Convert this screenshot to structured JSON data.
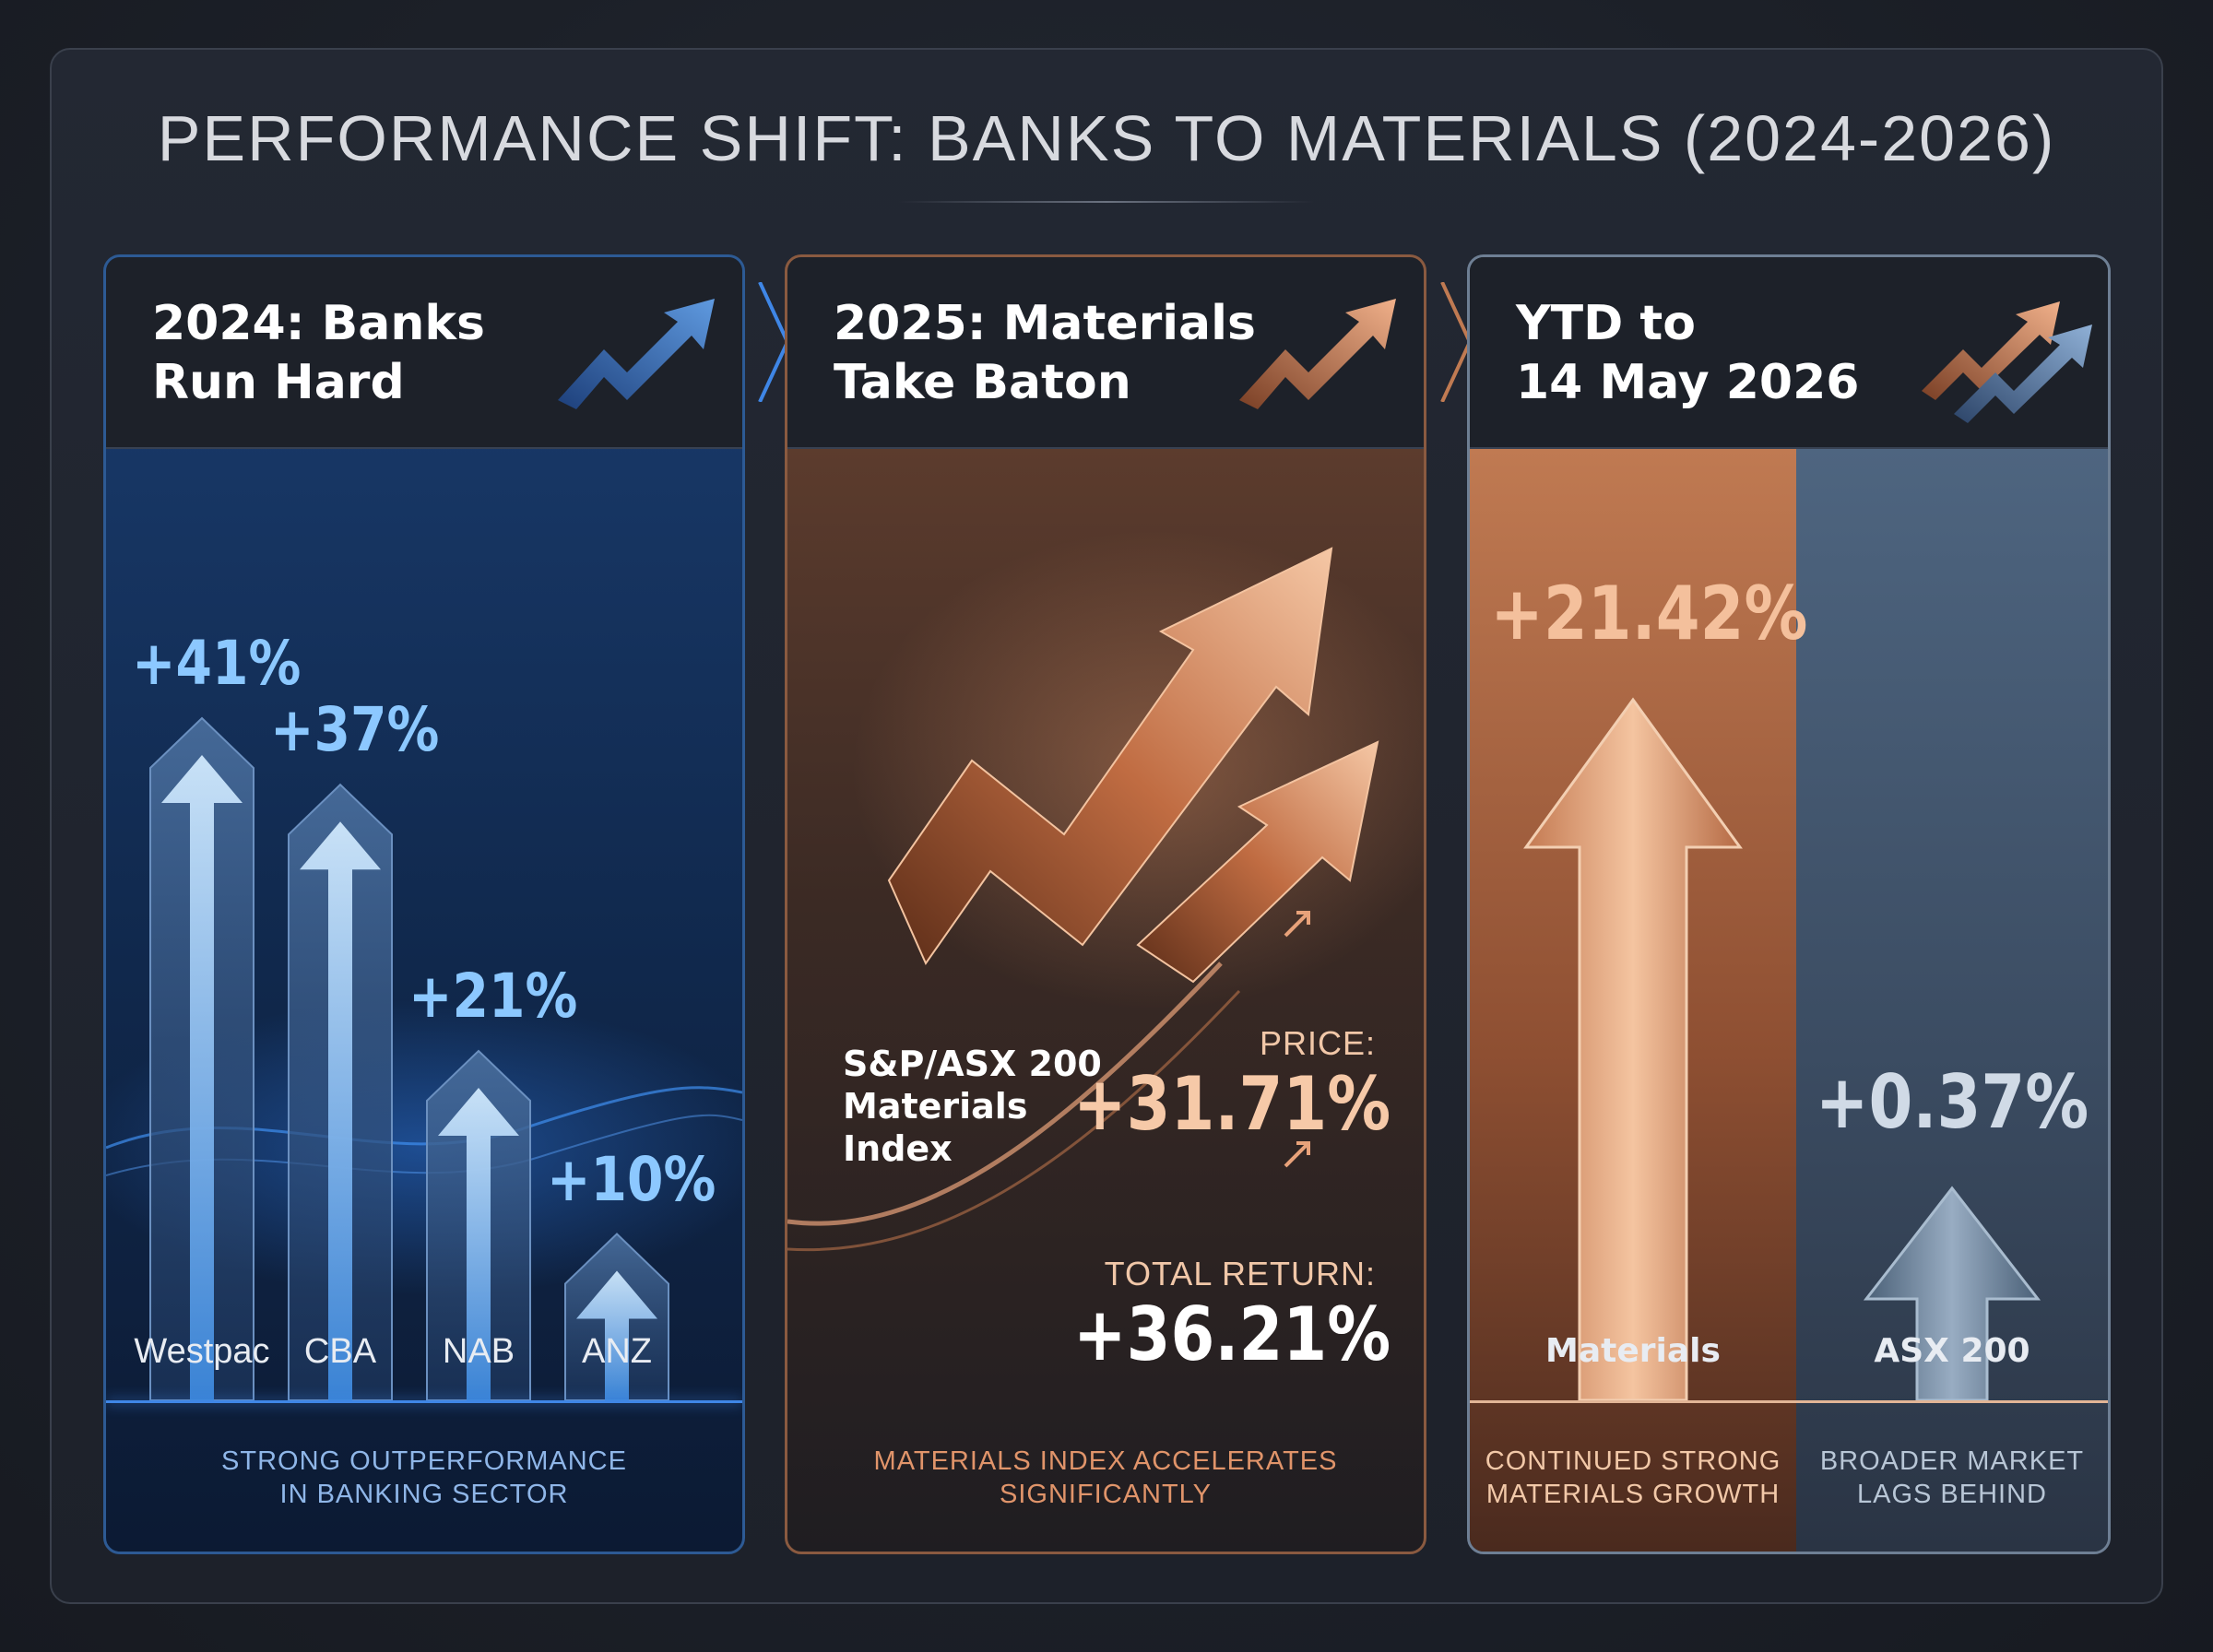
{
  "title": "PERFORMANCE SHIFT: BANKS TO MATERIALS (2024-2026)",
  "colors": {
    "blue_accent": "#6fb8ff",
    "copper_accent": "#e8a27a",
    "slate_accent": "#b8c6d6",
    "background": "#1b1f27"
  },
  "panels": [
    {
      "title": "2024: Banks\nRun Hard",
      "icon": "trend-up-arrow-icon",
      "footer": "STRONG OUTPERFORMANCE\nIN BANKING SECTOR"
    },
    {
      "title": "2025: Materials\nTake Baton",
      "icon": "trend-up-arrow-icon",
      "index_name": "S&P/ASX 200\nMaterials\nIndex",
      "price_label": "PRICE:",
      "price_value": "+31.71%",
      "total_return_label": "TOTAL RETURN:",
      "total_return_value": "+36.21%",
      "footer": "MATERIALS INDEX ACCELERATES\nSIGNIFICANTLY"
    },
    {
      "title": "YTD to\n14 May 2026",
      "icon": "dual-trend-arrows-icon",
      "left_footer": "CONTINUED STRONG\nMATERIALS GROWTH",
      "right_footer": "BROADER MARKET\nLAGS BEHIND"
    }
  ],
  "chart_data": [
    {
      "type": "bar",
      "title": "2024: Banks Run Hard",
      "categories": [
        "Westpac",
        "CBA",
        "NAB",
        "ANZ"
      ],
      "values": [
        41,
        37,
        21,
        10
      ],
      "value_labels": [
        "+41%",
        "+37%",
        "+21%",
        "+10%"
      ],
      "unit": "%"
    },
    {
      "type": "bar",
      "title": "2025: Materials Take Baton",
      "categories": [
        "Price",
        "Total Return"
      ],
      "values": [
        31.71,
        36.21
      ],
      "unit": "%"
    },
    {
      "type": "bar",
      "title": "YTD to 14 May 2026",
      "categories": [
        "Materials",
        "ASX 200"
      ],
      "values": [
        21.42,
        0.37
      ],
      "value_labels": [
        "+21.42%",
        "+0.37%"
      ],
      "unit": "%"
    }
  ]
}
